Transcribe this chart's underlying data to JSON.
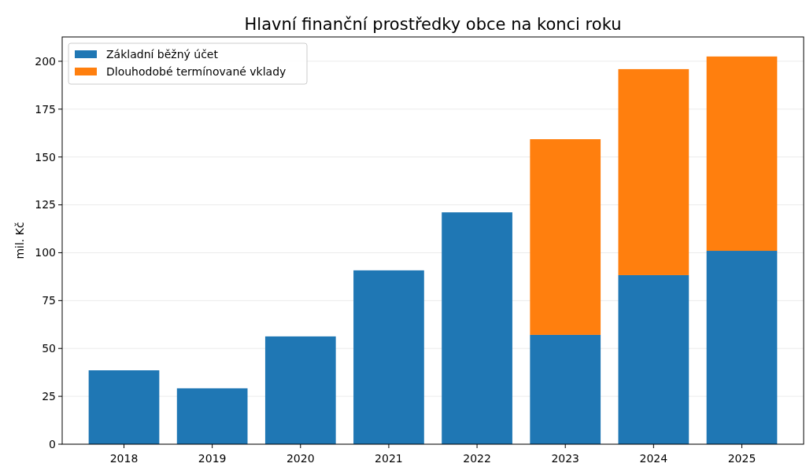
{
  "chart_data": {
    "type": "bar",
    "title": "Hlavní finanční prostředky obce na konci roku",
    "ylabel": "mil. Kč",
    "categories": [
      "2018",
      "2019",
      "2020",
      "2021",
      "2022",
      "2023",
      "2024",
      "2025"
    ],
    "series": [
      {
        "name": "Základní běžný účet",
        "color": "#1f77b4",
        "values": [
          38.6,
          29.2,
          56.3,
          90.8,
          121.1,
          57.1,
          88.3,
          101.0
        ]
      },
      {
        "name": "Dlouhodobé termínované vklady",
        "color": "#ff7f0e",
        "values": [
          0,
          0,
          0,
          0,
          0,
          102.2,
          107.6,
          101.5
        ]
      }
    ],
    "stacked": true,
    "ylim": [
      0,
      212.7
    ],
    "yticks": [
      0,
      25,
      50,
      75,
      100,
      125,
      150,
      175,
      200
    ],
    "grid": "y",
    "legend": "top left"
  }
}
